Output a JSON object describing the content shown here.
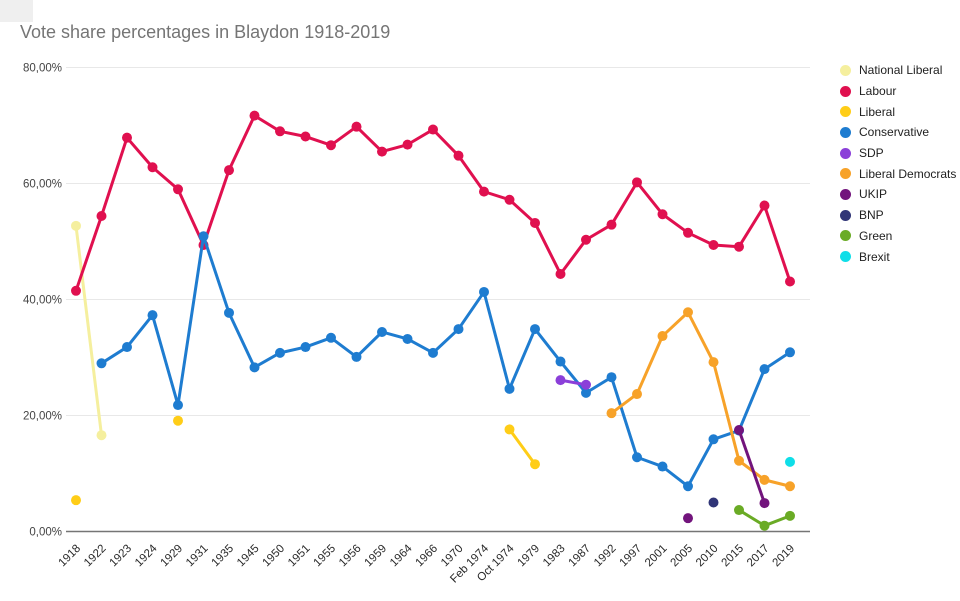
{
  "chart_data": {
    "type": "line",
    "title": "Vote share percentages in Blaydon 1918-2019",
    "legend_position": "right",
    "grid": true,
    "categories": [
      "1918",
      "1922",
      "1923",
      "1924",
      "1929",
      "1931",
      "1935",
      "1945",
      "1950",
      "1951",
      "1955",
      "1956",
      "1959",
      "1964",
      "1966",
      "1970",
      "Feb 1974",
      "Oct 1974",
      "1979",
      "1983",
      "1987",
      "1992",
      "1997",
      "2001",
      "2005",
      "2010",
      "2015",
      "2017",
      "2019"
    ],
    "y_axis": {
      "range": [
        0,
        80
      ],
      "tick_values": [
        0,
        20,
        40,
        60,
        80
      ],
      "tick_labels": [
        "0,00%",
        "20,00%",
        "40,00%",
        "60,00%",
        "80,00%"
      ]
    },
    "series": [
      {
        "name": "National Liberal",
        "color": "#F5EF9E",
        "values": [
          52.7,
          16.6,
          null,
          null,
          null,
          null,
          null,
          null,
          null,
          null,
          null,
          null,
          null,
          null,
          null,
          null,
          null,
          null,
          null,
          null,
          null,
          null,
          null,
          null,
          null,
          null,
          null,
          null,
          null
        ]
      },
      {
        "name": "Labour",
        "color": "#E0104F",
        "values": [
          41.5,
          54.4,
          67.9,
          62.8,
          59.0,
          49.4,
          62.3,
          71.7,
          69.0,
          68.1,
          66.6,
          69.8,
          65.5,
          66.7,
          69.3,
          64.8,
          58.6,
          57.2,
          53.2,
          44.4,
          50.3,
          52.9,
          60.2,
          54.7,
          51.5,
          49.4,
          49.1,
          56.2,
          43.1
        ]
      },
      {
        "name": "Liberal",
        "color": "#FFCD17",
        "values": [
          5.4,
          null,
          null,
          null,
          19.1,
          null,
          null,
          null,
          null,
          null,
          null,
          null,
          null,
          null,
          null,
          null,
          null,
          17.6,
          11.6,
          null,
          null,
          null,
          null,
          null,
          null,
          null,
          null,
          null,
          null
        ]
      },
      {
        "name": "Conservative",
        "color": "#1E7CD0",
        "values": [
          null,
          29.0,
          31.8,
          37.3,
          21.8,
          50.9,
          37.7,
          28.3,
          30.8,
          31.8,
          33.4,
          30.1,
          34.4,
          33.2,
          30.8,
          34.9,
          41.3,
          24.6,
          34.9,
          29.3,
          23.9,
          26.6,
          12.8,
          11.2,
          7.8,
          15.9,
          17.4,
          28.0,
          30.9
        ]
      },
      {
        "name": "SDP",
        "color": "#8B3FD9",
        "values": [
          null,
          null,
          null,
          null,
          null,
          null,
          null,
          null,
          null,
          null,
          null,
          null,
          null,
          null,
          null,
          null,
          null,
          null,
          null,
          26.1,
          25.3,
          null,
          null,
          null,
          null,
          null,
          null,
          null,
          null
        ]
      },
      {
        "name": "Liberal Democrats",
        "color": "#F7A229",
        "values": [
          null,
          null,
          null,
          null,
          null,
          null,
          null,
          null,
          null,
          null,
          null,
          null,
          null,
          null,
          null,
          null,
          null,
          null,
          null,
          null,
          null,
          20.4,
          23.7,
          33.7,
          37.8,
          29.2,
          12.2,
          8.9,
          7.8
        ]
      },
      {
        "name": "UKIP",
        "color": "#72147C",
        "values": [
          null,
          null,
          null,
          null,
          null,
          null,
          null,
          null,
          null,
          null,
          null,
          null,
          null,
          null,
          null,
          null,
          null,
          null,
          null,
          null,
          null,
          null,
          null,
          null,
          2.3,
          null,
          17.5,
          4.9,
          null
        ]
      },
      {
        "name": "BNP",
        "color": "#303577",
        "values": [
          null,
          null,
          null,
          null,
          null,
          null,
          null,
          null,
          null,
          null,
          null,
          null,
          null,
          null,
          null,
          null,
          null,
          null,
          null,
          null,
          null,
          null,
          null,
          null,
          null,
          5.0,
          null,
          null,
          null
        ]
      },
      {
        "name": "Green",
        "color": "#6AAB25",
        "values": [
          null,
          null,
          null,
          null,
          null,
          null,
          null,
          null,
          null,
          null,
          null,
          null,
          null,
          null,
          null,
          null,
          null,
          null,
          null,
          null,
          null,
          null,
          null,
          null,
          null,
          null,
          3.7,
          1.0,
          2.7
        ]
      },
      {
        "name": "Brexit",
        "color": "#0FDEE8",
        "values": [
          null,
          null,
          null,
          null,
          null,
          null,
          null,
          null,
          null,
          null,
          null,
          null,
          null,
          null,
          null,
          null,
          null,
          null,
          null,
          null,
          null,
          null,
          null,
          null,
          null,
          null,
          null,
          null,
          12.0
        ]
      }
    ]
  }
}
